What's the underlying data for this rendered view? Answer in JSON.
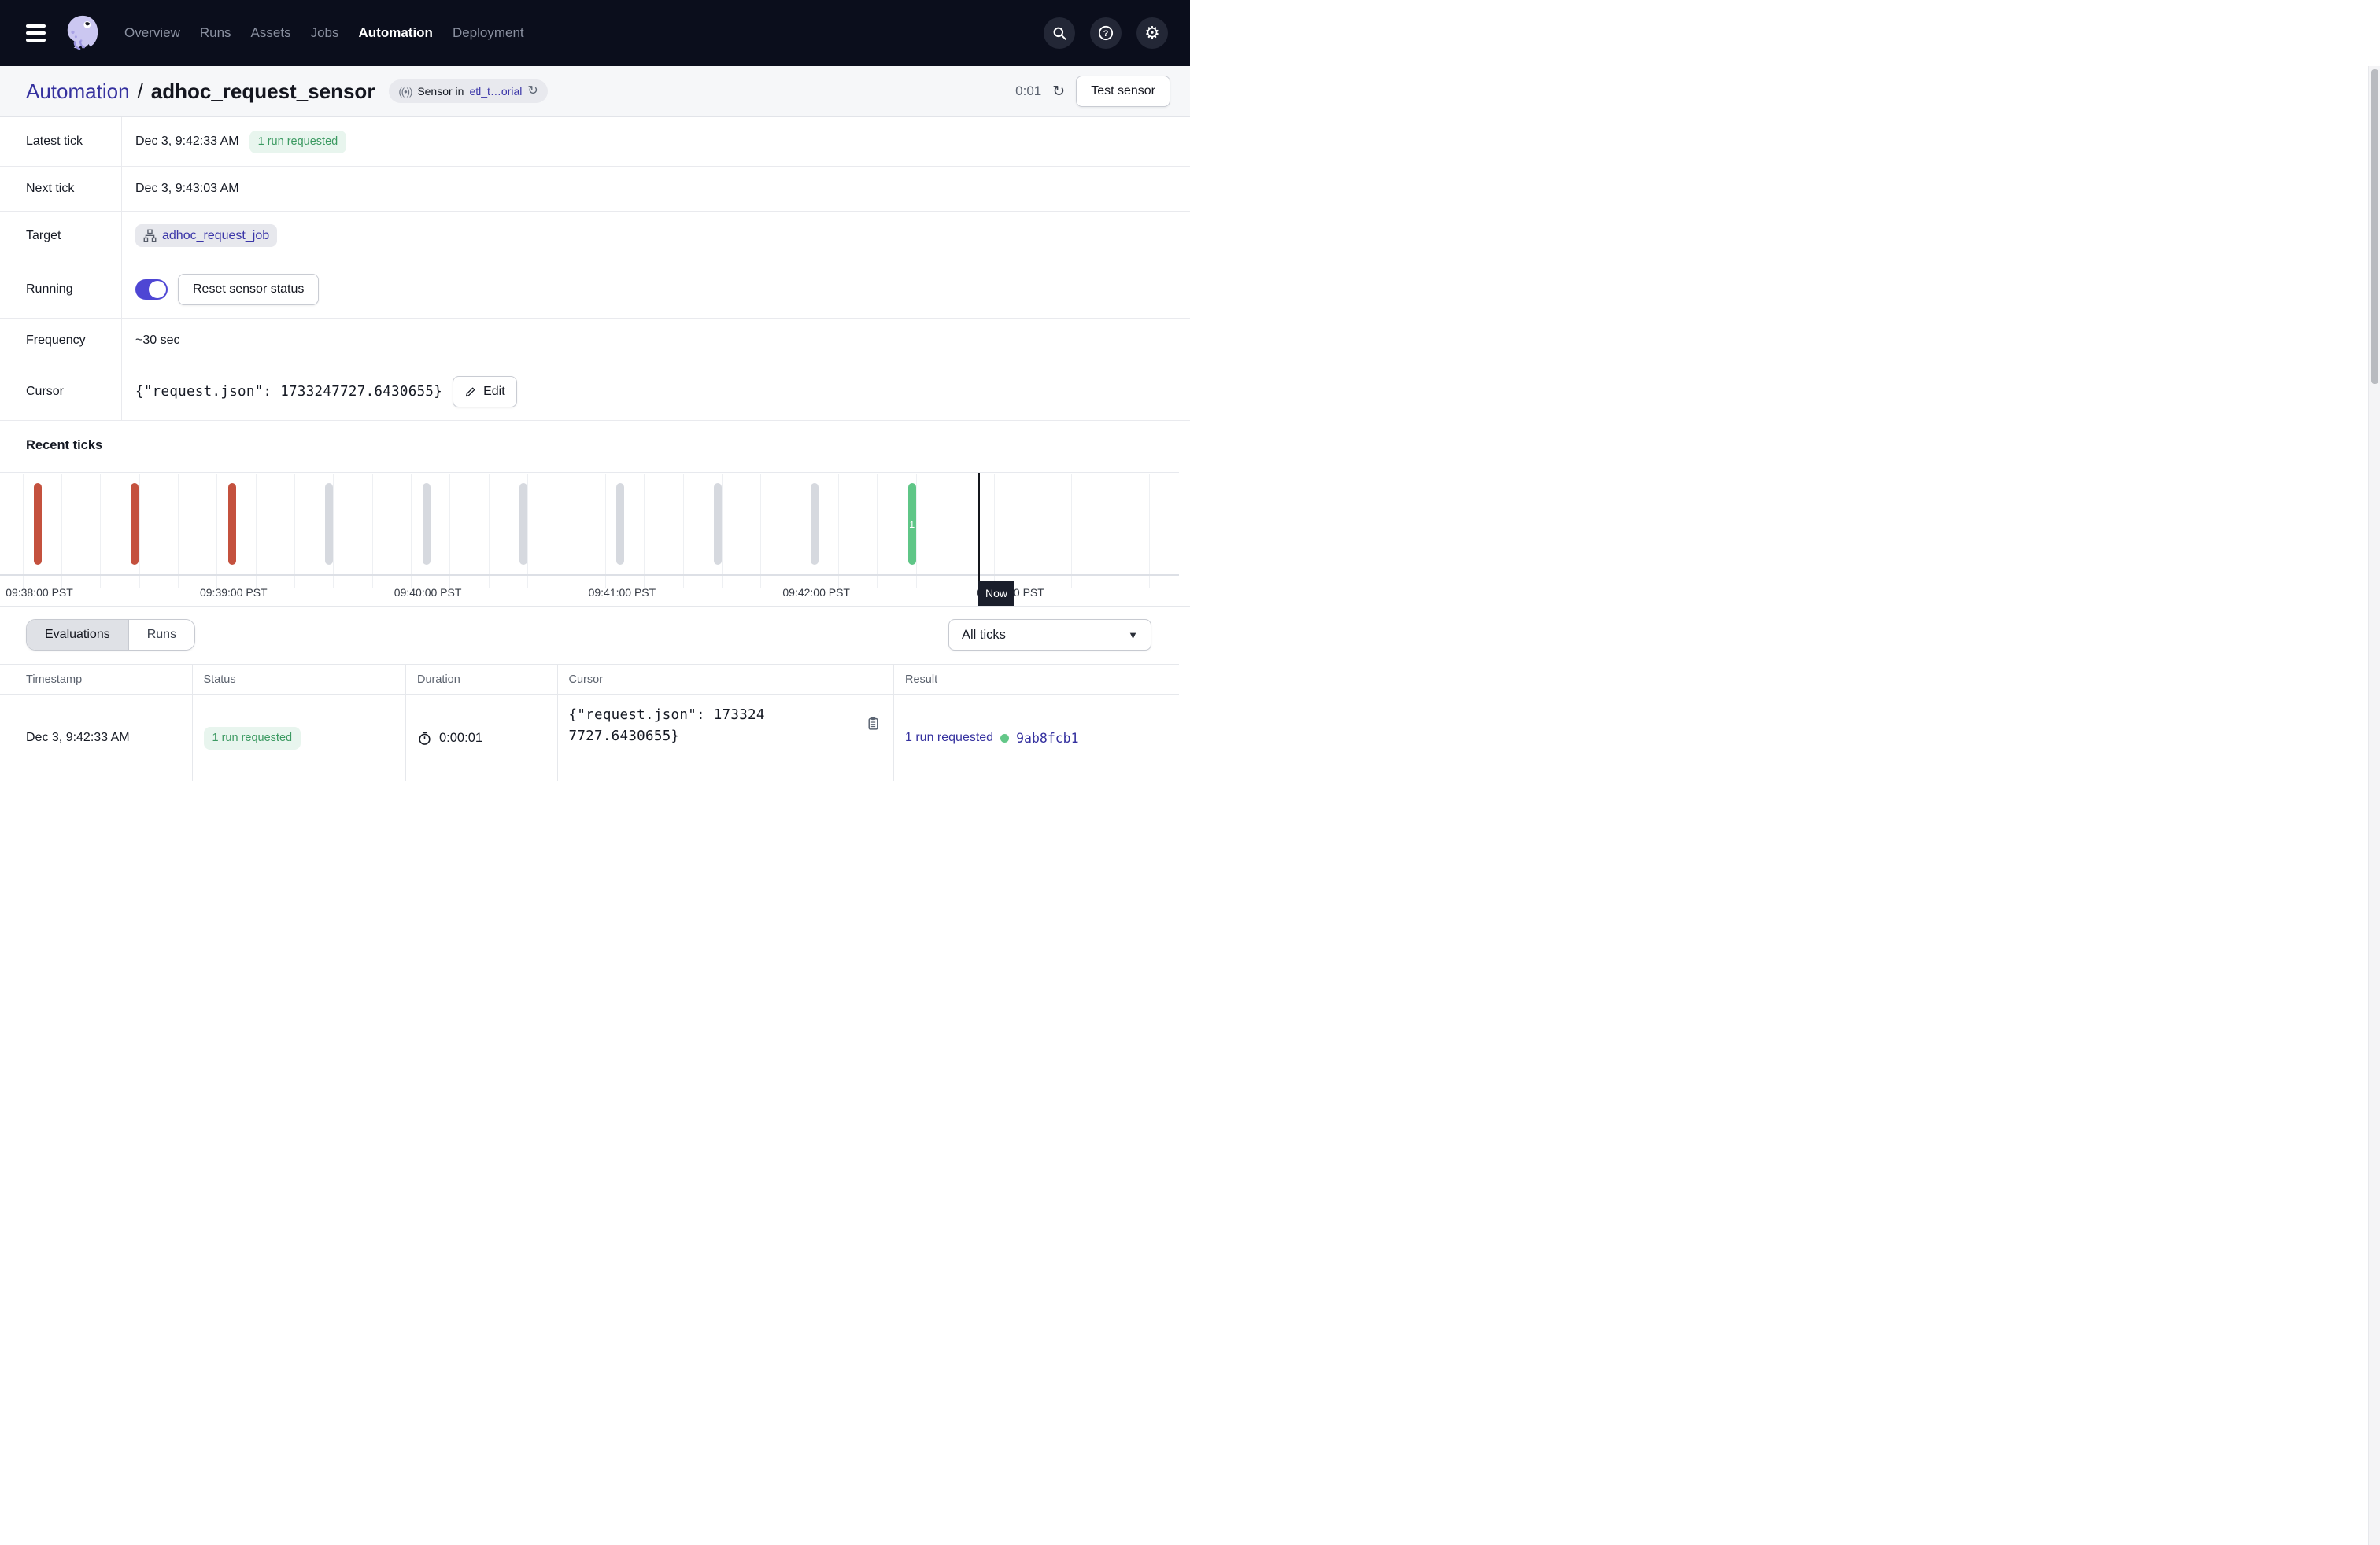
{
  "colors": {
    "nav_bg": "#0b0e1c",
    "accent_link": "#35319f",
    "blurple_toggle": "#4e46d4",
    "success_green": "#5fc687",
    "failure_red": "#c4513e",
    "skipped_gray": "#d6d9df",
    "green_badge_bg": "#e8f5ee",
    "green_badge_text": "#3c9a62"
  },
  "nav": {
    "items": [
      {
        "label": "Overview",
        "active": false
      },
      {
        "label": "Runs",
        "active": false
      },
      {
        "label": "Assets",
        "active": false
      },
      {
        "label": "Jobs",
        "active": false
      },
      {
        "label": "Automation",
        "active": true
      },
      {
        "label": "Deployment",
        "active": false
      }
    ]
  },
  "header": {
    "breadcrumb_section": "Automation",
    "breadcrumb_separator": "/",
    "sensor_name": "adhoc_request_sensor",
    "badge": {
      "icon": "((•))",
      "text": "Sensor in",
      "repo_link": "etl_t…orial",
      "sync_icon": "↻"
    },
    "refresh_countdown": "0:01",
    "refresh_icon": "↻",
    "test_sensor_button": "Test sensor"
  },
  "details": {
    "latest_tick": {
      "label": "Latest tick",
      "value": "Dec 3, 9:42:33 AM",
      "status_badge": "1 run requested"
    },
    "next_tick": {
      "label": "Next tick",
      "value": "Dec 3, 9:43:03 AM"
    },
    "target": {
      "label": "Target",
      "job": "adhoc_request_job"
    },
    "running": {
      "label": "Running",
      "toggle_on": true,
      "reset_button": "Reset sensor status"
    },
    "frequency": {
      "label": "Frequency",
      "value": "~30 sec"
    },
    "cursor": {
      "label": "Cursor",
      "value": "{\"request.json\": 1733247727.6430655}",
      "edit_button": "Edit"
    }
  },
  "recent_ticks": {
    "title": "Recent ticks",
    "chart_data": {
      "type": "tick-timeline",
      "ticks": [
        {
          "time": "09:38:03",
          "status": "failed",
          "runs": 0
        },
        {
          "time": "09:38:33",
          "status": "failed",
          "runs": 0
        },
        {
          "time": "09:39:03",
          "status": "failed",
          "runs": 0
        },
        {
          "time": "09:39:33",
          "status": "skipped",
          "runs": 0
        },
        {
          "time": "09:40:03",
          "status": "skipped",
          "runs": 0
        },
        {
          "time": "09:40:33",
          "status": "skipped",
          "runs": 0
        },
        {
          "time": "09:41:03",
          "status": "skipped",
          "runs": 0
        },
        {
          "time": "09:41:33",
          "status": "skipped",
          "runs": 0
        },
        {
          "time": "09:42:03",
          "status": "skipped",
          "runs": 0
        },
        {
          "time": "09:42:33",
          "status": "requested",
          "runs": 1
        }
      ],
      "axis_labels": [
        "09:38:00 PST",
        "09:39:00 PST",
        "09:40:00 PST",
        "09:41:00 PST",
        "09:42:00 PST",
        "09:43:00 PST"
      ],
      "now_label": "Now",
      "colors": {
        "failed": "#c4513e",
        "skipped": "#d6d9df",
        "requested": "#5fc687"
      }
    }
  },
  "history": {
    "tabs": [
      {
        "label": "Evaluations",
        "active": true
      },
      {
        "label": "Runs",
        "active": false
      }
    ],
    "filter": {
      "value": "All ticks"
    },
    "table": {
      "columns": [
        "Timestamp",
        "Status",
        "Duration",
        "Cursor",
        "Result"
      ],
      "rows": [
        {
          "timestamp": "Dec 3, 9:42:33 AM",
          "status": "1 run requested",
          "duration": "0:00:01",
          "cursor": "{\"request.json\": 1733247727.6430655}",
          "result_text": "1 run requested",
          "result_run_id": "9ab8fcb1"
        }
      ]
    }
  }
}
